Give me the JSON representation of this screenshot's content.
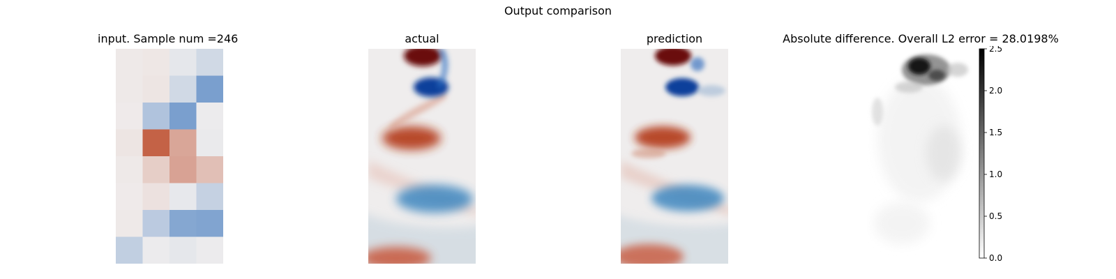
{
  "figure": {
    "title": "Output comparison"
  },
  "chart_data": [
    {
      "type": "heatmap",
      "title": "input. Sample num =246",
      "grid": {
        "rows": 8,
        "cols": 4
      },
      "colormap": "diverging-blue-red",
      "values": [
        [
          0.03,
          0.04,
          -0.05,
          -0.15
        ],
        [
          0.03,
          0.05,
          -0.15,
          -0.55
        ],
        [
          0.02,
          -0.3,
          -0.55,
          -0.02
        ],
        [
          0.05,
          0.78,
          0.4,
          -0.03
        ],
        [
          0.03,
          0.18,
          0.42,
          0.26
        ],
        [
          0.02,
          0.07,
          -0.04,
          -0.2
        ],
        [
          0.03,
          -0.25,
          -0.5,
          -0.52
        ],
        [
          -0.22,
          -0.02,
          -0.05,
          -0.02
        ]
      ]
    },
    {
      "type": "heatmap",
      "title": "actual",
      "colormap": "diverging-blue-red"
    },
    {
      "type": "heatmap",
      "title": "prediction",
      "colormap": "diverging-blue-red"
    },
    {
      "type": "heatmap",
      "title": "Absolute difference. Overall L2 error = 28.0198%",
      "colormap": "grayscale",
      "colorbar": {
        "range": [
          0.0,
          2.5
        ],
        "ticks": [
          "0.0",
          "0.5",
          "1.0",
          "1.5",
          "2.0",
          "2.5"
        ]
      }
    }
  ],
  "palette": {
    "red": "#b73a17",
    "blue": "#1a5fb4",
    "neutral": "#f0eeee"
  }
}
